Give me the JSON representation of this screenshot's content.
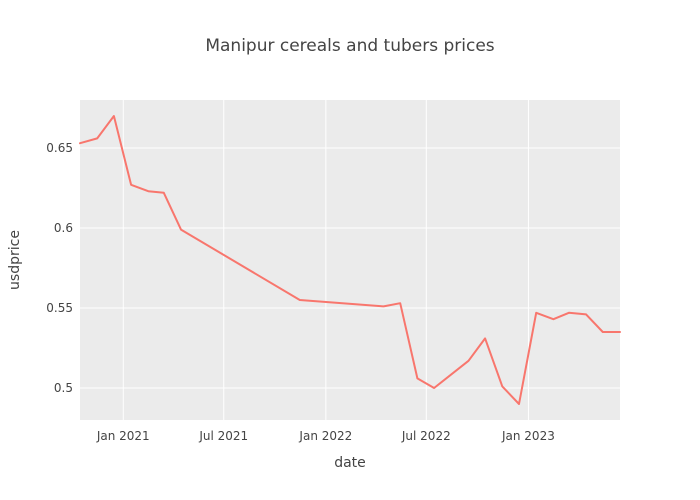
{
  "chart_data": {
    "type": "line",
    "title": "Manipur cereals and tubers prices",
    "xlabel": "date",
    "ylabel": "usdprice",
    "x_tick_labels": [
      "Jan 2021",
      "Jul 2021",
      "Jan 2022",
      "Jul 2022",
      "Jan 2023"
    ],
    "x_ticks": [
      "2021-01-01",
      "2021-07-01",
      "2022-01-01",
      "2022-07-01",
      "2023-01-01"
    ],
    "xlim": [
      "2020-10-15",
      "2023-06-15"
    ],
    "y_tick_labels": [
      "0.5",
      "0.55",
      "0.6",
      "0.65"
    ],
    "y_ticks": [
      0.5,
      0.55,
      0.6,
      0.65
    ],
    "ylim": [
      0.48,
      0.68
    ],
    "grid": true,
    "series": [
      {
        "color": "#F8766D",
        "x": [
          "2020-10-15",
          "2020-11-15",
          "2020-12-15",
          "2021-01-15",
          "2021-02-15",
          "2021-03-15",
          "2021-04-15",
          "2021-11-15",
          "2022-04-15",
          "2022-05-15",
          "2022-06-15",
          "2022-07-15",
          "2022-09-15",
          "2022-10-15",
          "2022-11-15",
          "2022-12-15",
          "2023-01-15",
          "2023-02-15",
          "2023-03-15",
          "2023-04-15",
          "2023-05-15",
          "2023-06-15"
        ],
        "values": [
          0.653,
          0.656,
          0.67,
          0.627,
          0.623,
          0.622,
          0.599,
          0.555,
          0.551,
          0.553,
          0.506,
          0.5,
          0.517,
          0.531,
          0.501,
          0.49,
          0.547,
          0.543,
          0.547,
          0.546,
          0.535,
          0.535
        ]
      }
    ]
  }
}
